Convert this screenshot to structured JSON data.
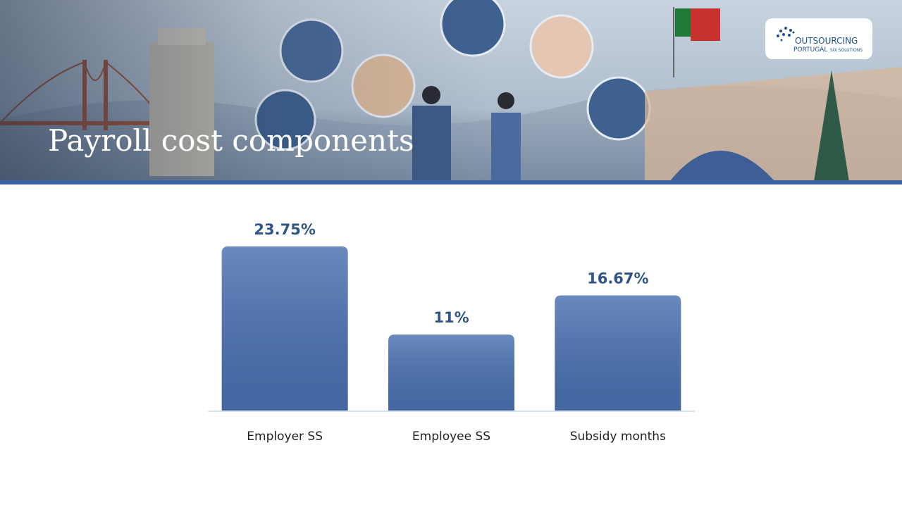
{
  "chart_data": {
    "type": "bar",
    "title": "Payroll cost components",
    "categories": [
      "Employer SS",
      "Employee SS",
      "Subsidy months"
    ],
    "values": [
      23.75,
      11,
      16.67
    ],
    "value_labels": [
      "23.75%",
      "11%",
      "16.67%"
    ],
    "color": "#4a70b0"
  },
  "brand": {
    "name": "OUTSOURCING",
    "region": "PORTUGAL",
    "tagline": "SIX SOLUTIONS"
  }
}
